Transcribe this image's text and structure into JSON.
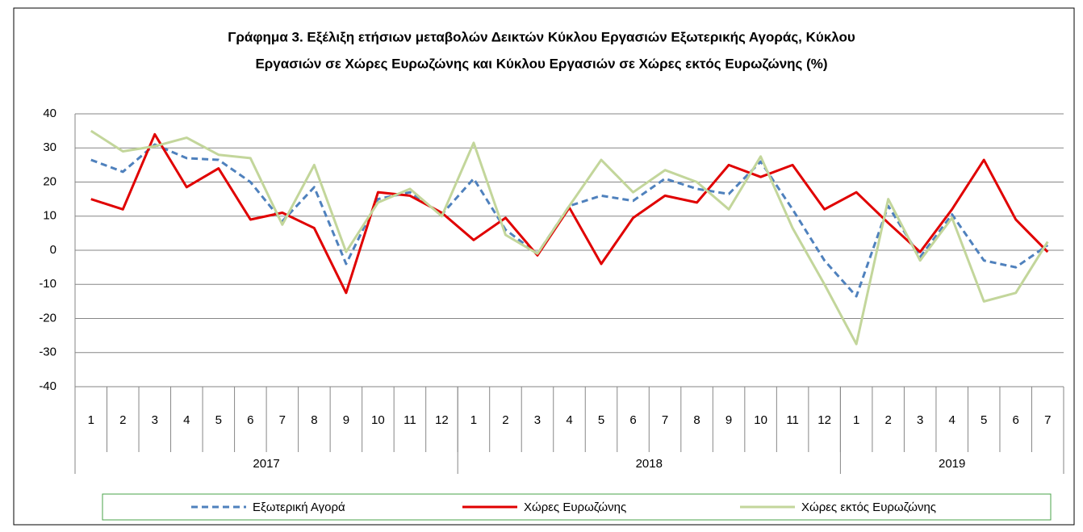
{
  "chart_data": {
    "type": "line",
    "title": [
      "Γράφημα 3. Εξέλιξη  ετήσιων μεταβολών Δεικτών Κύκλου Εργασιών Εξωτερικής Αγοράς,  Κύκλου",
      "Εργασιών σε Χώρες Ευρωζώνης και Κύκλου Εργασιών σε Χώρες εκτός Ευρωζώνης (%)"
    ],
    "categories": [
      "1",
      "2",
      "3",
      "4",
      "5",
      "6",
      "7",
      "8",
      "9",
      "10",
      "11",
      "12",
      "1",
      "2",
      "3",
      "4",
      "5",
      "6",
      "7",
      "8",
      "9",
      "10",
      "11",
      "12",
      "1",
      "2",
      "3",
      "4",
      "5",
      "6",
      "7"
    ],
    "year_groups": [
      {
        "label": "2017",
        "count": 12
      },
      {
        "label": "2018",
        "count": 12
      },
      {
        "label": "2019",
        "count": 7
      }
    ],
    "ylim": [
      -40,
      40
    ],
    "yticks": [
      -40,
      -30,
      -20,
      -10,
      0,
      10,
      20,
      30,
      40
    ],
    "grid": true,
    "series": [
      {
        "name": "Εξωτερική Αγορά",
        "color": "#4f81bd",
        "dash": true,
        "values": [
          26.5,
          23,
          31,
          27,
          26.5,
          20,
          8.5,
          18.5,
          -4,
          15,
          17,
          10.5,
          21,
          6,
          -1,
          13,
          16,
          14.5,
          21,
          18,
          16.5,
          26,
          12,
          -3,
          -13.5,
          13,
          -2,
          10.5,
          -3,
          -5,
          1.5
        ]
      },
      {
        "name": "Χώρες Ευρωζώνης",
        "color": "#e00000",
        "dash": false,
        "values": [
          15,
          12,
          34,
          18.5,
          24,
          9,
          11,
          6.5,
          -12.5,
          17,
          16,
          11,
          3,
          9.5,
          -1.5,
          12.5,
          -4,
          9.5,
          16,
          14,
          25,
          21.5,
          25,
          12,
          17,
          8,
          -0.5,
          12,
          26.5,
          9,
          -0.5
        ]
      },
      {
        "name": "Χώρες εκτός Ευρωζώνης",
        "color": "#c3d69b",
        "dash": false,
        "values": [
          35,
          29,
          30.5,
          33,
          28,
          27,
          7.5,
          25,
          -0.5,
          14,
          18,
          10,
          31.5,
          4.5,
          -1,
          13,
          26.5,
          17,
          23.5,
          20,
          12,
          27.5,
          6.5,
          -10,
          -27.5,
          15,
          -3,
          9.5,
          -15,
          -12.5,
          2.5
        ]
      }
    ]
  }
}
